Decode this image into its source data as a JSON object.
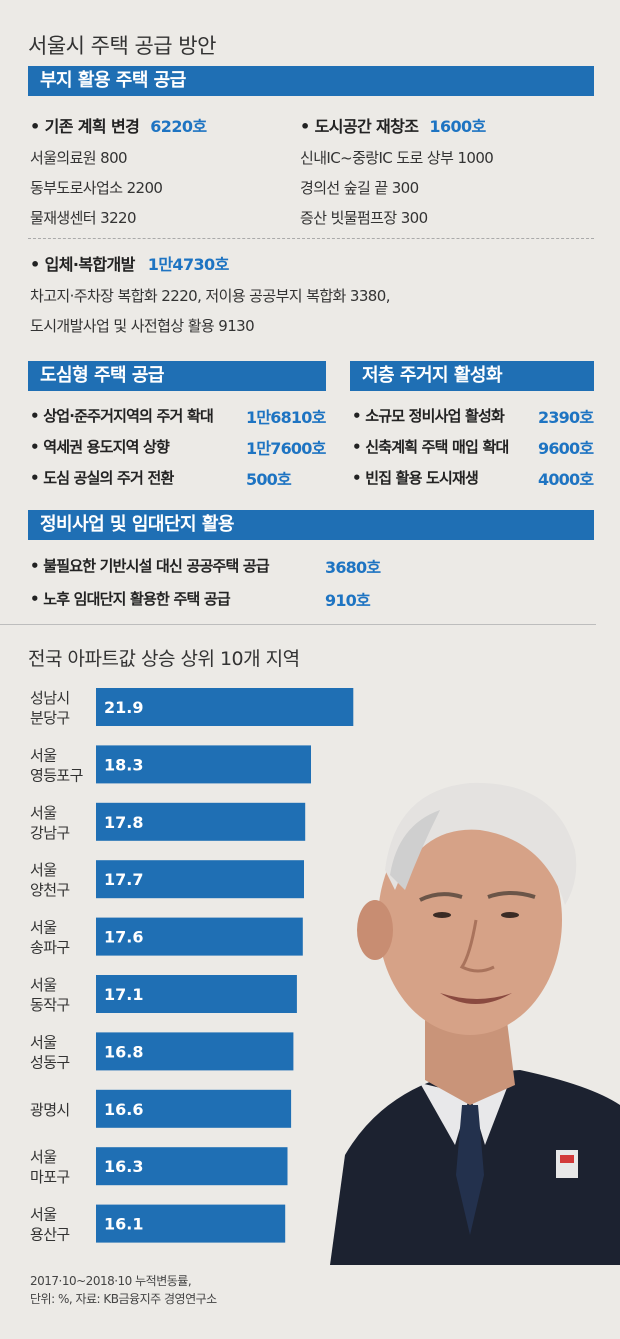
{
  "title": "서울시 주택 공급 방안",
  "sections": {
    "land": {
      "header": "부지 활용 주택 공급",
      "left": {
        "label": "• 기존 계획 변경",
        "value": "6220호",
        "rows": [
          "서울의료원  800",
          "동부도로사업소  2200",
          "물재생센터  3220"
        ]
      },
      "right": {
        "label": "• 도시공간 재창조",
        "value": "1600호",
        "rows": [
          "신내IC~중랑IC 도로 상부  1000",
          "경의선 숲길 끝  300",
          "증산 빗물펌프장  300"
        ]
      },
      "bottom": {
        "label": "• 입체·복합개발",
        "value": "1만4730호",
        "rows": [
          "차고지·주차장 복합화  2220,  저이용 공공부지 복합화  3380,",
          "도시개발사업 및 사전협상 활용  9130"
        ]
      }
    },
    "urban": {
      "header": "도심형 주택 공급",
      "items": [
        {
          "label": "• 상업·준주거지역의 주거 확대",
          "value": "1만6810호"
        },
        {
          "label": "• 역세권 용도지역 상향",
          "value": "1만7600호"
        },
        {
          "label": "• 도심 공실의 주거 전환",
          "value": "500호"
        }
      ]
    },
    "lowrise": {
      "header": "저층 주거지 활성화",
      "items": [
        {
          "label": "• 소규모 정비사업 활성화",
          "value": "2390호"
        },
        {
          "label": "• 신축계획 주택 매입 확대",
          "value": "9600호"
        },
        {
          "label": "• 빈집 활용 도시재생",
          "value": "4000호"
        }
      ]
    },
    "renewal": {
      "header": "정비사업 및 임대단지 활용",
      "items": [
        {
          "label": "• 불필요한 기반시설 대신 공공주택 공급",
          "value": "3680호"
        },
        {
          "label": "• 노후 임대단지 활용한 주택 공급",
          "value": "910호"
        }
      ]
    }
  },
  "chart_data": {
    "type": "bar",
    "orientation": "horizontal",
    "title": "전국 아파트값 상승 상위 10개 지역",
    "categories": [
      [
        "성남시",
        "분당구"
      ],
      [
        "서울",
        "영등포구"
      ],
      [
        "서울",
        "강남구"
      ],
      [
        "서울",
        "양천구"
      ],
      [
        "서울",
        "송파구"
      ],
      [
        "서울",
        "동작구"
      ],
      [
        "서울",
        "성동구"
      ],
      [
        "광명시"
      ],
      [
        "서울",
        "마포구"
      ],
      [
        "서울",
        "용산구"
      ]
    ],
    "values": [
      21.9,
      18.3,
      17.8,
      17.7,
      17.6,
      17.1,
      16.8,
      16.6,
      16.3,
      16.1
    ],
    "bar_color": "#1f6fb4",
    "grid": false
  },
  "footnote": {
    "line1": "2017·10~2018·10 누적변동률,",
    "line2": "단위: %, 자료: KB금융지주 경영연구소"
  },
  "colors": {
    "accent": "#1f6fb4",
    "value_text": "#1e74c2",
    "background": "#eceae6"
  },
  "photo_icon": "person-portrait-icon"
}
